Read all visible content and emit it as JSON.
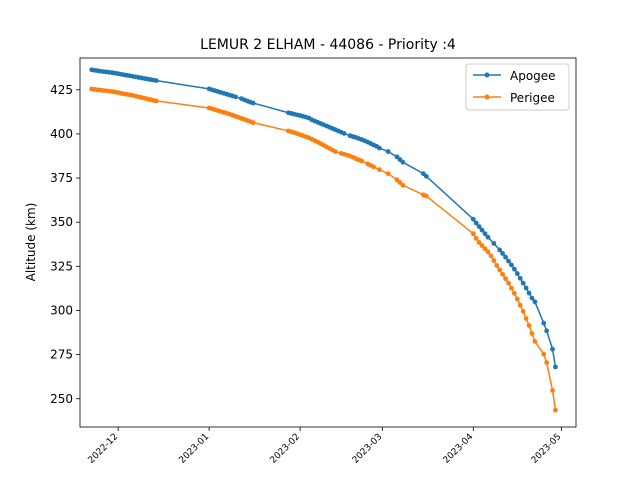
{
  "chart_data": {
    "type": "line",
    "title": "LEMUR 2 ELHAM - 44086 - Priority :4",
    "xlabel": "",
    "ylabel": "Altitude (km)",
    "x_axis_type": "date",
    "xlim": [
      "2022-11-18",
      "2023-05-06"
    ],
    "ylim": [
      234,
      443
    ],
    "xticks": [
      "2022-12-01",
      "2023-01-01",
      "2023-02-01",
      "2023-03-01",
      "2023-04-01",
      "2023-05-01"
    ],
    "xtick_labels": [
      "2022-12",
      "2023-01",
      "2023-02",
      "2023-03",
      "2023-04",
      "2023-05"
    ],
    "yticks": [
      250,
      275,
      300,
      325,
      350,
      375,
      400,
      425
    ],
    "grid": false,
    "legend_position": "top-right",
    "series": [
      {
        "name": "Apogee",
        "color": "#1f77b4",
        "marker": "circle",
        "points": [
          [
            "2022-11-22",
            436.3
          ],
          [
            "2022-11-23",
            436.0
          ],
          [
            "2022-11-24",
            435.8
          ],
          [
            "2022-11-25",
            435.5
          ],
          [
            "2022-11-26",
            435.3
          ],
          [
            "2022-11-27",
            435.1
          ],
          [
            "2022-11-28",
            434.9
          ],
          [
            "2022-11-29",
            434.7
          ],
          [
            "2022-11-30",
            434.4
          ],
          [
            "2022-12-01",
            434.1
          ],
          [
            "2022-12-02",
            433.8
          ],
          [
            "2022-12-03",
            433.5
          ],
          [
            "2022-12-04",
            433.2
          ],
          [
            "2022-12-05",
            432.9
          ],
          [
            "2022-12-06",
            432.6
          ],
          [
            "2022-12-07",
            432.3
          ],
          [
            "2022-12-08",
            432.0
          ],
          [
            "2022-12-09",
            431.7
          ],
          [
            "2022-12-10",
            431.4
          ],
          [
            "2022-12-11",
            431.1
          ],
          [
            "2022-12-12",
            430.8
          ],
          [
            "2022-12-13",
            430.5
          ],
          [
            "2022-12-14",
            430.2
          ],
          [
            "2023-01-01",
            425.5
          ],
          [
            "2023-01-02",
            425.0
          ],
          [
            "2023-01-03",
            424.5
          ],
          [
            "2023-01-04",
            424.0
          ],
          [
            "2023-01-05",
            423.5
          ],
          [
            "2023-01-06",
            423.0
          ],
          [
            "2023-01-07",
            422.5
          ],
          [
            "2023-01-08",
            422.0
          ],
          [
            "2023-01-09",
            421.5
          ],
          [
            "2023-01-10",
            421.0
          ],
          [
            "2023-01-12",
            420.0
          ],
          [
            "2023-01-13",
            419.3
          ],
          [
            "2023-01-14",
            418.6
          ],
          [
            "2023-01-15",
            418.0
          ],
          [
            "2023-01-16",
            417.5
          ],
          [
            "2023-01-28",
            412.0
          ],
          [
            "2023-01-29",
            411.6
          ],
          [
            "2023-01-30",
            411.2
          ],
          [
            "2023-01-31",
            410.8
          ],
          [
            "2023-02-01",
            410.4
          ],
          [
            "2023-02-02",
            410.0
          ],
          [
            "2023-02-03",
            409.5
          ],
          [
            "2023-02-04",
            409.0
          ],
          [
            "2023-02-05",
            408.0
          ],
          [
            "2023-02-06",
            407.3
          ],
          [
            "2023-02-07",
            406.6
          ],
          [
            "2023-02-08",
            405.9
          ],
          [
            "2023-02-09",
            405.2
          ],
          [
            "2023-02-10",
            404.5
          ],
          [
            "2023-02-11",
            403.8
          ],
          [
            "2023-02-12",
            403.1
          ],
          [
            "2023-02-13",
            402.4
          ],
          [
            "2023-02-14",
            401.7
          ],
          [
            "2023-02-15",
            401.0
          ],
          [
            "2023-02-16",
            400.3
          ],
          [
            "2023-02-18",
            399.0
          ],
          [
            "2023-02-19",
            398.5
          ],
          [
            "2023-02-20",
            398.0
          ],
          [
            "2023-02-21",
            397.4
          ],
          [
            "2023-02-22",
            396.8
          ],
          [
            "2023-02-23",
            396.1
          ],
          [
            "2023-02-24",
            395.4
          ],
          [
            "2023-02-25",
            394.6
          ],
          [
            "2023-02-26",
            393.8
          ],
          [
            "2023-02-27",
            393.0
          ],
          [
            "2023-02-28",
            392.0
          ],
          [
            "2023-03-03",
            390.0
          ],
          [
            "2023-03-06",
            387.0
          ],
          [
            "2023-03-07",
            385.5
          ],
          [
            "2023-03-08",
            384.0
          ],
          [
            "2023-03-15",
            377.5
          ],
          [
            "2023-03-16",
            376.0
          ],
          [
            "2023-04-01",
            351.7
          ],
          [
            "2023-04-02",
            349.5
          ],
          [
            "2023-04-03",
            347.5
          ],
          [
            "2023-04-04",
            345.5
          ],
          [
            "2023-04-05",
            343.5
          ],
          [
            "2023-04-06",
            341.5
          ],
          [
            "2023-04-08",
            338.0
          ],
          [
            "2023-04-10",
            334.3
          ],
          [
            "2023-04-11",
            332.3
          ],
          [
            "2023-04-12",
            330.2
          ],
          [
            "2023-04-13",
            328.0
          ],
          [
            "2023-04-14",
            325.8
          ],
          [
            "2023-04-15",
            323.4
          ],
          [
            "2023-04-16",
            320.9
          ],
          [
            "2023-04-17",
            318.2
          ],
          [
            "2023-04-18",
            315.5
          ],
          [
            "2023-04-19",
            312.7
          ],
          [
            "2023-04-20",
            309.9
          ],
          [
            "2023-04-21",
            307.0
          ],
          [
            "2023-04-22",
            304.9
          ],
          [
            "2023-04-25",
            292.8
          ],
          [
            "2023-04-26",
            288.5
          ],
          [
            "2023-04-28",
            278.1
          ],
          [
            "2023-04-29",
            268.0
          ]
        ]
      },
      {
        "name": "Perigee",
        "color": "#ff7f0e",
        "marker": "circle",
        "points": [
          [
            "2022-11-22",
            425.5
          ],
          [
            "2022-11-23",
            425.2
          ],
          [
            "2022-11-24",
            425.0
          ],
          [
            "2022-11-25",
            424.8
          ],
          [
            "2022-11-26",
            424.6
          ],
          [
            "2022-11-27",
            424.4
          ],
          [
            "2022-11-28",
            424.2
          ],
          [
            "2022-11-29",
            424.0
          ],
          [
            "2022-11-30",
            423.7
          ],
          [
            "2022-12-01",
            423.4
          ],
          [
            "2022-12-02",
            423.0
          ],
          [
            "2022-12-03",
            422.7
          ],
          [
            "2022-12-04",
            422.4
          ],
          [
            "2022-12-05",
            422.1
          ],
          [
            "2022-12-06",
            421.8
          ],
          [
            "2022-12-07",
            421.4
          ],
          [
            "2022-12-08",
            421.0
          ],
          [
            "2022-12-09",
            420.6
          ],
          [
            "2022-12-10",
            420.2
          ],
          [
            "2022-12-11",
            419.8
          ],
          [
            "2022-12-12",
            419.4
          ],
          [
            "2022-12-13",
            419.0
          ],
          [
            "2022-12-14",
            418.7
          ],
          [
            "2023-01-01",
            414.7
          ],
          [
            "2023-01-02",
            414.2
          ],
          [
            "2023-01-03",
            413.7
          ],
          [
            "2023-01-04",
            413.2
          ],
          [
            "2023-01-05",
            412.7
          ],
          [
            "2023-01-06",
            412.2
          ],
          [
            "2023-01-07",
            411.7
          ],
          [
            "2023-01-08",
            411.2
          ],
          [
            "2023-01-09",
            410.6
          ],
          [
            "2023-01-10",
            410.0
          ],
          [
            "2023-01-11",
            409.4
          ],
          [
            "2023-01-12",
            408.8
          ],
          [
            "2023-01-13",
            408.2
          ],
          [
            "2023-01-14",
            407.6
          ],
          [
            "2023-01-15",
            407.0
          ],
          [
            "2023-01-16",
            406.4
          ],
          [
            "2023-01-28",
            401.7
          ],
          [
            "2023-01-29",
            401.2
          ],
          [
            "2023-01-30",
            400.7
          ],
          [
            "2023-01-31",
            400.2
          ],
          [
            "2023-02-01",
            399.6
          ],
          [
            "2023-02-02",
            399.0
          ],
          [
            "2023-02-03",
            398.4
          ],
          [
            "2023-02-04",
            397.8
          ],
          [
            "2023-02-05",
            397.0
          ],
          [
            "2023-02-06",
            396.2
          ],
          [
            "2023-02-07",
            395.4
          ],
          [
            "2023-02-08",
            394.5
          ],
          [
            "2023-02-09",
            393.6
          ],
          [
            "2023-02-10",
            392.7
          ],
          [
            "2023-02-11",
            391.8
          ],
          [
            "2023-02-12",
            390.9
          ],
          [
            "2023-02-13",
            390.0
          ],
          [
            "2023-02-15",
            389.0
          ],
          [
            "2023-02-16",
            388.5
          ],
          [
            "2023-02-17",
            388.0
          ],
          [
            "2023-02-18",
            387.4
          ],
          [
            "2023-02-19",
            386.8
          ],
          [
            "2023-02-20",
            386.0
          ],
          [
            "2023-02-21",
            385.3
          ],
          [
            "2023-02-22",
            384.7
          ],
          [
            "2023-02-24",
            383.0
          ],
          [
            "2023-02-25",
            382.2
          ],
          [
            "2023-02-26",
            381.4
          ],
          [
            "2023-02-28",
            379.8
          ],
          [
            "2023-03-03",
            377.5
          ],
          [
            "2023-03-06",
            374.0
          ],
          [
            "2023-03-07",
            372.5
          ],
          [
            "2023-03-08",
            371.0
          ],
          [
            "2023-03-15",
            365.5
          ],
          [
            "2023-03-16",
            364.8
          ],
          [
            "2023-04-01",
            343.5
          ],
          [
            "2023-04-02",
            340.8
          ],
          [
            "2023-04-03",
            338.5
          ],
          [
            "2023-04-04",
            336.8
          ],
          [
            "2023-04-05",
            335.0
          ],
          [
            "2023-04-06",
            333.3
          ],
          [
            "2023-04-07",
            331.0
          ],
          [
            "2023-04-08",
            328.3
          ],
          [
            "2023-04-09",
            325.5
          ],
          [
            "2023-04-10",
            323.0
          ],
          [
            "2023-04-11",
            320.5
          ],
          [
            "2023-04-12",
            318.0
          ],
          [
            "2023-04-13",
            315.5
          ],
          [
            "2023-04-14",
            312.6
          ],
          [
            "2023-04-15",
            309.7
          ],
          [
            "2023-04-16",
            306.5
          ],
          [
            "2023-04-17",
            303.0
          ],
          [
            "2023-04-18",
            299.5
          ],
          [
            "2023-04-19",
            295.5
          ],
          [
            "2023-04-20",
            291.5
          ],
          [
            "2023-04-21",
            287.0
          ],
          [
            "2023-04-22",
            282.5
          ],
          [
            "2023-04-25",
            275.3
          ],
          [
            "2023-04-26",
            270.5
          ],
          [
            "2023-04-28",
            254.7
          ],
          [
            "2023-04-29",
            243.5
          ]
        ]
      }
    ]
  }
}
